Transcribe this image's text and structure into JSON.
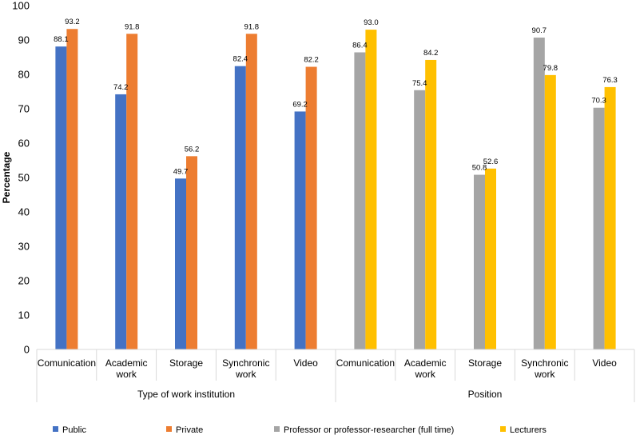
{
  "chart_data": {
    "type": "bar",
    "title": "",
    "ylabel": "Percentage",
    "ylim": [
      0,
      100
    ],
    "yticks": [
      0,
      10,
      20,
      30,
      40,
      50,
      60,
      70,
      80,
      90,
      100
    ],
    "grid": false,
    "legend_position": "bottom",
    "groups": [
      {
        "label": "Type of work institution",
        "categories": [
          {
            "lines": [
              "Comunication"
            ]
          },
          {
            "lines": [
              "Academic",
              "work"
            ]
          },
          {
            "lines": [
              "Storage"
            ]
          },
          {
            "lines": [
              "Synchronic",
              "work"
            ]
          },
          {
            "lines": [
              "Video"
            ]
          }
        ],
        "series": [
          {
            "name": "Public",
            "color": "#4472C4",
            "values": [
              88.1,
              74.2,
              49.7,
              82.4,
              69.2
            ]
          },
          {
            "name": "Private",
            "color": "#ED7D31",
            "values": [
              93.2,
              91.8,
              56.2,
              91.8,
              82.2
            ]
          }
        ]
      },
      {
        "label": "Position",
        "categories": [
          {
            "lines": [
              "Comunication"
            ]
          },
          {
            "lines": [
              "Academic",
              "work"
            ]
          },
          {
            "lines": [
              "Storage"
            ]
          },
          {
            "lines": [
              "Synchronic",
              "work"
            ]
          },
          {
            "lines": [
              "Video"
            ]
          }
        ],
        "series": [
          {
            "name": "Professor or professor-researcher (full time)",
            "color": "#A5A5A5",
            "values": [
              86.4,
              75.4,
              50.8,
              90.7,
              70.3
            ]
          },
          {
            "name": "Lecturers",
            "color": "#FFC000",
            "values": [
              93.0,
              84.2,
              52.6,
              79.8,
              76.3
            ]
          }
        ]
      }
    ],
    "legend": [
      {
        "name": "Public",
        "color": "#4472C4"
      },
      {
        "name": "Private",
        "color": "#ED7D31"
      },
      {
        "name": "Professor or professor-researcher (full time)",
        "color": "#A5A5A5"
      },
      {
        "name": "Lecturers",
        "color": "#FFC000"
      }
    ]
  }
}
